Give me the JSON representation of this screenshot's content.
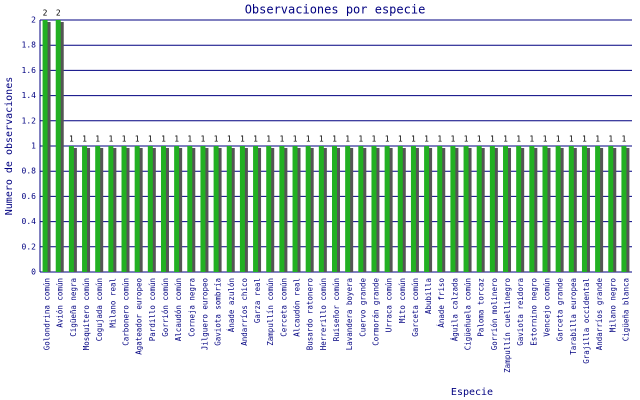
{
  "chart_data": {
    "type": "bar",
    "title": "Observaciones por especie",
    "x_label": "Especie",
    "y_label": "Numero de observaciones",
    "categories": [
      "Golondrina común",
      "Avión común",
      "Cigüeña negra",
      "Mosquitero común",
      "Cogujada común",
      "Milano real",
      "Carbonero común",
      "Agateador europeo",
      "Pardillo común",
      "Gorrión común",
      "Alcaudón común",
      "Corneja negra",
      "Jilguero europeo",
      "Gaviota sombría",
      "Ánade azulón",
      "Andarríos chico",
      "Garza real",
      "Zampullín común",
      "Cerceta común",
      "Alcaudón real",
      "Busardo ratonero",
      "Herrerillo común",
      "Ruiseñor común",
      "Lavandera boyera",
      "Cuervo grande",
      "Cormorán grande",
      "Urraca común",
      "Mito común",
      "Garceta común",
      "Abubilla",
      "Ánade friso",
      "Águila calzada",
      "Cigüeñuela común",
      "Paloma torcaz",
      "Gorrión molinero",
      "Zampullín cuellinegro",
      "Gaviota reidora",
      "Estornino negro",
      "Vencejo común",
      "Garceta grande",
      "Tarabilla europea",
      "Grajilla occidental",
      "Andarríos grande",
      "Milano negro",
      "Cigüeña blanca"
    ],
    "values": [
      2,
      2,
      1,
      1,
      1,
      1,
      1,
      1,
      1,
      1,
      1,
      1,
      1,
      1,
      1,
      1,
      1,
      1,
      1,
      1,
      1,
      1,
      1,
      1,
      1,
      1,
      1,
      1,
      1,
      1,
      1,
      1,
      1,
      1,
      1,
      1,
      1,
      1,
      1,
      1,
      1,
      1,
      1,
      1,
      1
    ],
    "color": "#22b022",
    "ylim": [
      0,
      2
    ],
    "yticks": [
      0,
      0.2,
      0.4,
      0.6,
      0.8,
      1,
      1.2,
      1.4,
      1.6,
      1.8,
      2
    ],
    "grid": true
  }
}
